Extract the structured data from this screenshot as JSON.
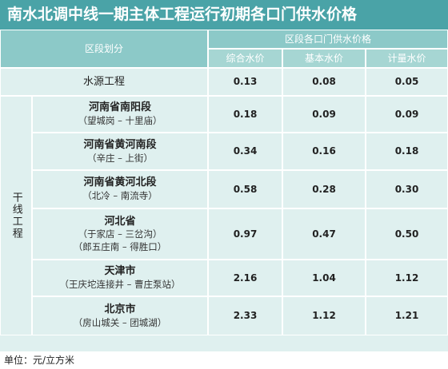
{
  "title": "南水北调中线一期主体工程运行初期各口门供水价格",
  "header": {
    "section_label": "区段划分",
    "price_group_label": "区段各口门供水价格",
    "col_total": "综合水价",
    "col_basic": "基本水价",
    "col_metered": "计量水价"
  },
  "water_source": {
    "label": "水源工程",
    "total": "0.13",
    "basic": "0.08",
    "metered": "0.05"
  },
  "trunk_label": "干线工程",
  "rows": [
    {
      "name": "河南省南阳段",
      "route": "（望城岗 – 十里庙）",
      "route2": "",
      "total": "0.18",
      "basic": "0.09",
      "metered": "0.09"
    },
    {
      "name": "河南省黄河南段",
      "route": "（辛庄 – 上街）",
      "route2": "",
      "total": "0.34",
      "basic": "0.16",
      "metered": "0.18"
    },
    {
      "name": "河南省黄河北段",
      "route": "（北冷 – 南流寺）",
      "route2": "",
      "total": "0.58",
      "basic": "0.28",
      "metered": "0.30"
    },
    {
      "name": "河北省",
      "route": "（于家店 – 三岔沟）",
      "route2": "（郎五庄南 – 得胜口）",
      "total": "0.97",
      "basic": "0.47",
      "metered": "0.50"
    },
    {
      "name": "天津市",
      "route": "（王庆坨连接井 – 曹庄泵站）",
      "route2": "",
      "total": "2.16",
      "basic": "1.04",
      "metered": "1.12"
    },
    {
      "name": "北京市",
      "route": "（房山城关 – 团城湖）",
      "route2": "",
      "total": "2.33",
      "basic": "1.12",
      "metered": "1.21"
    }
  ],
  "footer_unit": "单位：元/立方米"
}
